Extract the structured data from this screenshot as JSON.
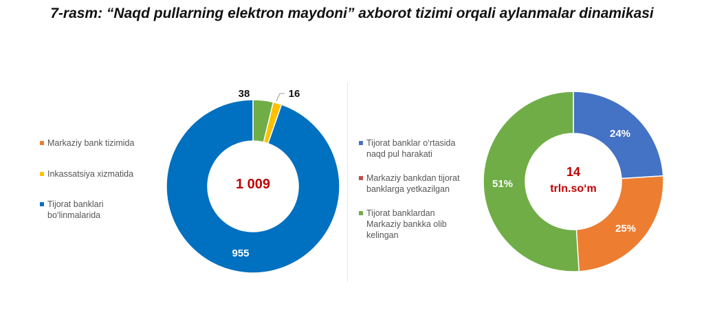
{
  "title": "7-rasm: “Naqd pullarning elektron maydoni” axborot tizimi orqali aylanmalar dinamikasi",
  "chart_data": [
    {
      "type": "pie",
      "donut": true,
      "center_label": "1 009",
      "legend_position": "left",
      "slices": [
        {
          "name": "Markaziy bank tizimida",
          "value": 38,
          "label": "38",
          "color": "#70ad47"
        },
        {
          "name": "Inkassatsiya xizmatida",
          "value": 16,
          "label": "16",
          "color": "#ffc000"
        },
        {
          "name": "Tijorat banklari bo‘linmalarida",
          "value": 955,
          "label": "955",
          "color": "#0070c0"
        }
      ],
      "legend_items": [
        {
          "text": "Markaziy bank tizimida",
          "color": "#ed7d31"
        },
        {
          "text": "Inkassatsiya xizmatida",
          "color": "#ffc000"
        },
        {
          "text": "Tijorat banklari bo‘linmalarida",
          "color": "#0070c0"
        }
      ]
    },
    {
      "type": "pie",
      "donut": true,
      "center_label_1": "14",
      "center_label_2": "trln.so‘m",
      "legend_position": "left",
      "slices": [
        {
          "name": "Tijorat banklar o‘rtasida naqd pul harakati",
          "value": 24,
          "label": "24%",
          "color": "#4472c4"
        },
        {
          "name": "Markaziy bankdan tijorat banklarga yetkazilgan",
          "value": 25,
          "label": "25%",
          "color": "#ed7d31"
        },
        {
          "name": "Tijorat banklardan Markaziy bankka olib kelingan",
          "value": 51,
          "label": "51%",
          "color": "#70ad47"
        }
      ],
      "legend_items": [
        {
          "text": "Tijorat banklar o‘rtasida naqd pul harakati",
          "color": "#4472c4"
        },
        {
          "text": "Markaziy bankdan tijorat banklarga yetkazilgan",
          "color": "#c0504d"
        },
        {
          "text": "Tijorat banklardan Markaziy bankka olib kelingan",
          "color": "#70ad47"
        }
      ]
    }
  ]
}
